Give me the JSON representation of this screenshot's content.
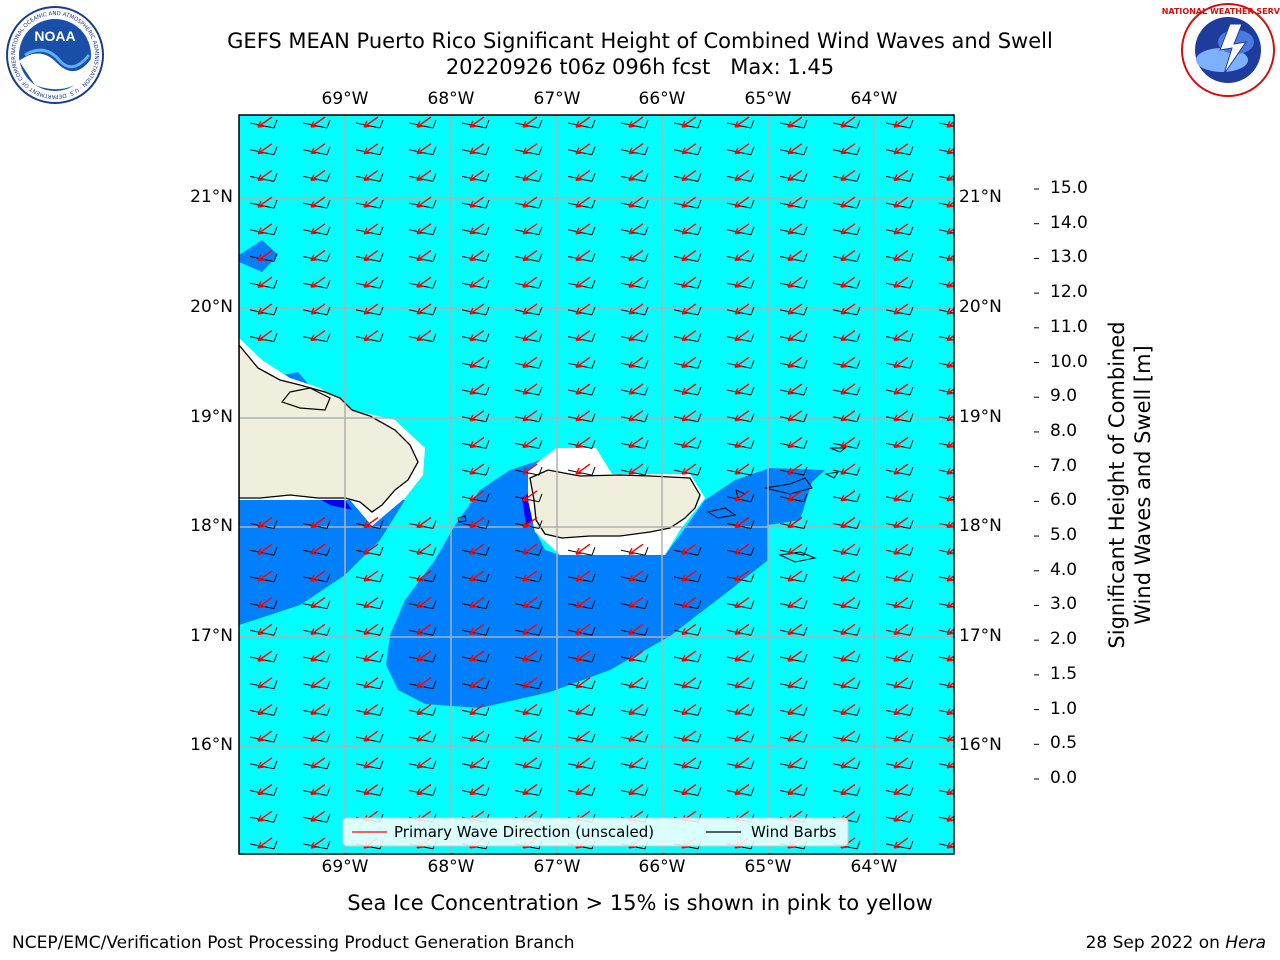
{
  "header": {
    "title_line1": "GEFS MEAN Puerto Rico Significant Height of Combined Wind Waves and Swell",
    "title_line2": "20220926 t06z 096h fcst   Max: 1.45"
  },
  "logos": {
    "left": {
      "name": "noaa-logo",
      "text": "NOAA",
      "ring_text": "NATIONAL OCEANIC AND ATMOSPHERIC ADMINISTRATION · U.S. DEPARTMENT OF COMMERCE"
    },
    "right": {
      "name": "nws-logo",
      "ring_text": "NATIONAL WEATHER SERVICE"
    }
  },
  "map": {
    "lon_labels": [
      "69°W",
      "68°W",
      "67°W",
      "66°W",
      "65°W",
      "64°W"
    ],
    "lat_labels": [
      "21°N",
      "20°N",
      "19°N",
      "18°N",
      "17°N",
      "16°N"
    ],
    "colors": {
      "ocean": "#00ffff",
      "band_05_10": "#0080ff",
      "band_00_05": "#0000ff",
      "land": "#f0eedc",
      "grid": "#b0b0b0",
      "arrow": "#ff0000",
      "barb": "#000000"
    }
  },
  "legend": {
    "wave_label": "Primary Wave Direction (unscaled)",
    "barb_label": "Wind Barbs"
  },
  "colorbar": {
    "label_line1": "Significant Height of Combined",
    "label_line2": "Wind Waves and Swell [m]",
    "ticks": [
      "15.0",
      "14.0",
      "13.0",
      "12.0",
      "11.0",
      "10.0",
      "9.0",
      "8.0",
      "7.0",
      "6.0",
      "5.0",
      "4.0",
      "3.0",
      "2.0",
      "1.5",
      "1.0",
      "0.5",
      "0.0"
    ],
    "colors": [
      "#ff0000",
      "#ff2a00",
      "#ff5500",
      "#ff8000",
      "#ffaa00",
      "#ffd400",
      "#ffff00",
      "#e1ff00",
      "#c4f200",
      "#7ee600",
      "#00e600",
      "#55f07f",
      "#aaffff",
      "#55ffff",
      "#00ffff",
      "#0080ff",
      "#0000ff"
    ]
  },
  "note": "Sea Ice Concentration > 15% is shown in pink to yellow",
  "footer": {
    "left": "NCEP/EMC/Verification Post Processing Product Generation Branch",
    "right_prefix": "28 Sep 2022 on ",
    "right_host": "Hera"
  }
}
